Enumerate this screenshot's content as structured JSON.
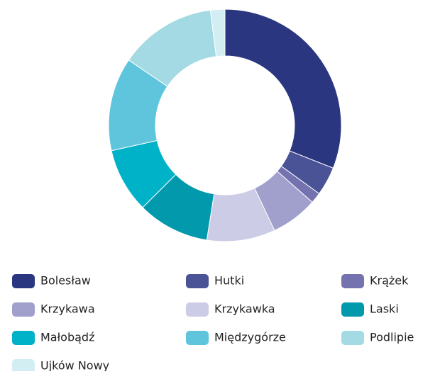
{
  "chart_data": {
    "type": "donut",
    "categories": [
      "Bolesław",
      "Hutki",
      "Krążek",
      "Krzykawa",
      "Krzykawka",
      "Laski",
      "Małobądź",
      "Międzygórze",
      "Podlipie",
      "Ujków Nowy"
    ],
    "values": [
      31,
      4,
      1.5,
      6.5,
      9.5,
      10,
      9,
      13,
      13.5,
      2
    ],
    "colors": [
      "#2b3680",
      "#4a5396",
      "#7473b0",
      "#a19fcc",
      "#cccce6",
      "#0399ad",
      "#00b2c8",
      "#5fc5dd",
      "#a3dae4",
      "#d2eef2"
    ],
    "legend": "bottom"
  }
}
